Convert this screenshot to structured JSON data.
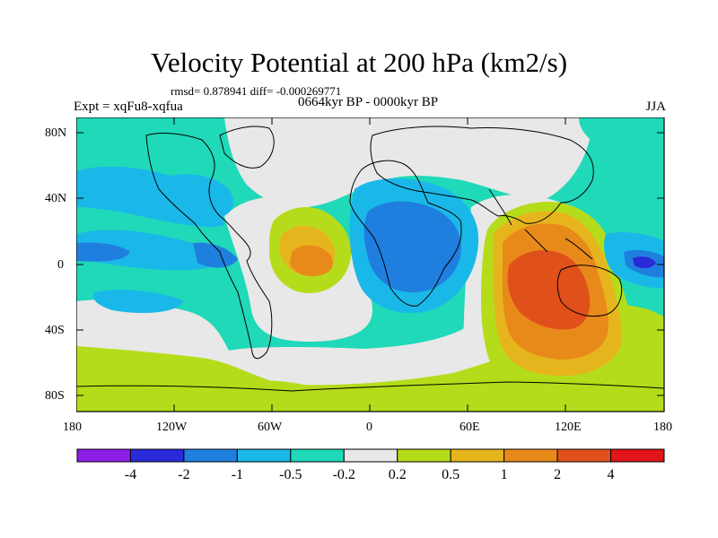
{
  "title": "Velocity Potential at 200 hPa (km2/s)",
  "stats": "rmsd= 0.878941 diff= -0.000269771",
  "experiment": "Expt = xqFu8-xqfua",
  "period": "0664kyr BP - 0000kyr BP",
  "season": "JJA",
  "lat_labels": [
    "80N",
    "40N",
    "0",
    "40S",
    "80S"
  ],
  "lon_labels": [
    "180",
    "120W",
    "60W",
    "0",
    "60E",
    "120E",
    "180"
  ],
  "colorbar": {
    "colors": [
      "#8c1ee6",
      "#2a2ad8",
      "#1f7fdf",
      "#1ab8e8",
      "#1fd9b8",
      "#e8e8e8",
      "#b5dc1a",
      "#e6b51e",
      "#e88a1a",
      "#e0501a",
      "#e0141a"
    ],
    "labels": [
      "-4",
      "-2",
      "-1",
      "-0.5",
      "-0.2",
      "0.2",
      "0.5",
      "1",
      "2",
      "4"
    ]
  }
}
